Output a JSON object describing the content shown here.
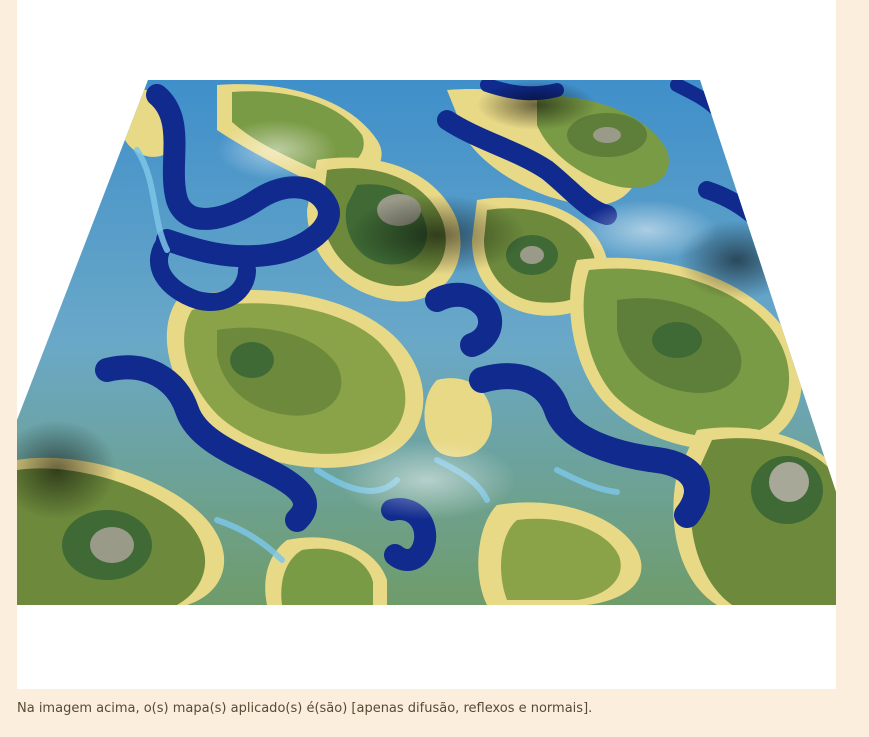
{
  "figure": {
    "image_semantic": "terrain-mesh-render",
    "colors": {
      "deep_water": "#102a8e",
      "mid_water": "#2f8fd0",
      "shallow_water": "#7cc6e6",
      "sand": "#e8d987",
      "grass_light": "#9aac4c",
      "grass": "#6d8a3c",
      "forest": "#3f6a35",
      "rock": "#9a9a88",
      "shadow": "#1b2a1e"
    }
  },
  "caption": {
    "text": "Na imagem acima, o(s) mapa(s) aplicado(s) é(são) [apenas difusão, reflexos e normais]."
  }
}
